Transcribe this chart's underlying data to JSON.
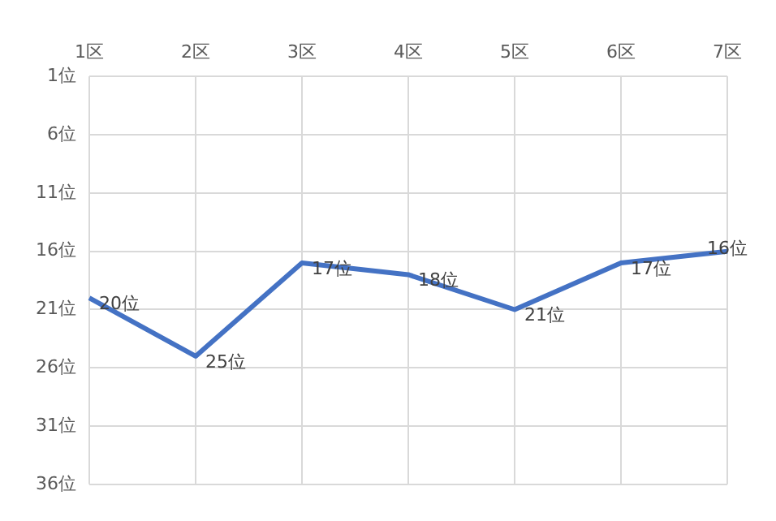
{
  "chart_data": {
    "type": "line",
    "categories": [
      "1区",
      "2区",
      "3区",
      "4区",
      "5区",
      "6区",
      "7区"
    ],
    "series": [
      {
        "color": "#4472c4",
        "values": [
          20,
          25,
          17,
          18,
          21,
          17,
          16
        ],
        "value_labels": [
          "20位",
          "25位",
          "17位",
          "18位",
          "21位",
          "17位",
          "16位"
        ]
      }
    ],
    "ylim": [
      36,
      1
    ],
    "yticks": [
      {
        "value": 1,
        "label": "1位"
      },
      {
        "value": 6,
        "label": "6位"
      },
      {
        "value": 11,
        "label": "11位"
      },
      {
        "value": 16,
        "label": "16位"
      },
      {
        "value": 21,
        "label": "21位"
      },
      {
        "value": 26,
        "label": "26位"
      },
      {
        "value": 31,
        "label": "31位"
      },
      {
        "value": 36,
        "label": "36位"
      }
    ],
    "grid": true,
    "legend": false,
    "marker": "none",
    "line_style": "solid"
  }
}
